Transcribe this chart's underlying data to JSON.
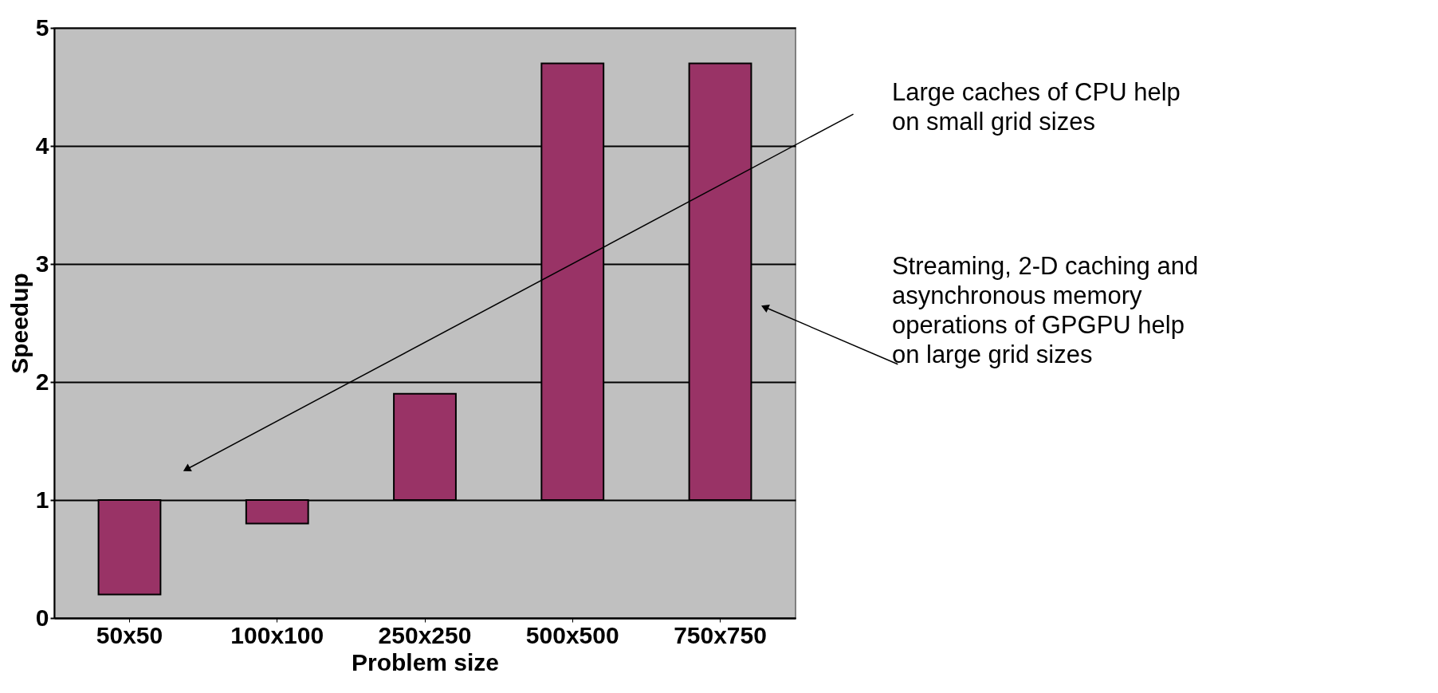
{
  "chart_data": {
    "type": "bar",
    "xlabel": "Problem size",
    "ylabel": "Speedup",
    "categories": [
      "50x50",
      "100x100",
      "250x250",
      "500x500",
      "750x750"
    ],
    "base": [
      1,
      1,
      1,
      1,
      1
    ],
    "values": [
      -0.8,
      -0.2,
      0.9,
      3.7,
      3.7
    ],
    "color": "#993366",
    "ylim": [
      0,
      5
    ],
    "yticks": [
      0,
      1,
      2,
      3,
      4,
      5
    ],
    "grid": "y",
    "annotations": [
      "Large caches of CPU help\non small grid sizes",
      "Streaming, 2-D caching and\nasynchronous memory\noperations of GPGPU help\non large grid sizes"
    ]
  }
}
